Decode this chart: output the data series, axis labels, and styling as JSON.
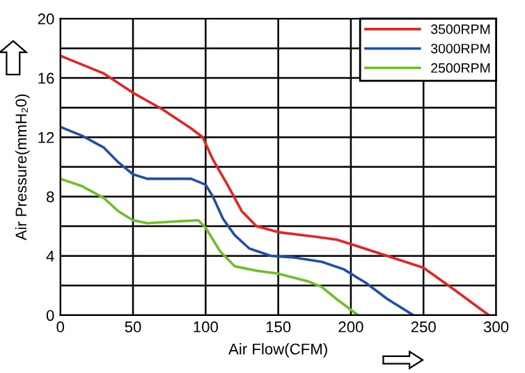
{
  "chart_data": {
    "type": "line",
    "xlabel": "Air Flow(CFM)",
    "ylabel": "Air Pressure(mmH₂0)",
    "xlim": [
      0,
      300
    ],
    "ylim": [
      0,
      20
    ],
    "xticks": [
      0,
      50,
      100,
      150,
      200,
      250,
      300
    ],
    "yticks": [
      0,
      {
        "value": 2,
        "label": null
      },
      4,
      {
        "value": 6,
        "label": null
      },
      8,
      {
        "value": 10,
        "label": null
      },
      12,
      {
        "value": 14,
        "label": null
      },
      16,
      {
        "value": 18,
        "label": null
      },
      20
    ],
    "grid": true,
    "legend": "top right",
    "marker": "none",
    "line_style": "solid",
    "series": [
      {
        "name": "3500RPM",
        "color": "#e8231f",
        "x": [
          0,
          30,
          50,
          70,
          90,
          98,
          105,
          115,
          125,
          135,
          150,
          175,
          190,
          200,
          225,
          250,
          270,
          295
        ],
        "values": [
          17.5,
          16.3,
          15,
          13.9,
          12.6,
          12,
          10.5,
          8.8,
          7,
          6,
          5.6,
          5.3,
          5.1,
          4.8,
          4,
          3.2,
          1.8,
          0
        ]
      },
      {
        "name": "3000RPM",
        "color": "#1f4fa8",
        "x": [
          0,
          15,
          30,
          40,
          50,
          60,
          75,
          90,
          100,
          105,
          112,
          120,
          130,
          145,
          160,
          180,
          195,
          210,
          225,
          243
        ],
        "values": [
          12.7,
          12.1,
          11.3,
          10.3,
          9.5,
          9.2,
          9.2,
          9.2,
          8.8,
          8,
          6.5,
          5.4,
          4.5,
          4,
          3.9,
          3.6,
          3.1,
          2.2,
          1.1,
          0
        ]
      },
      {
        "name": "2500RPM",
        "color": "#6cc024",
        "x": [
          0,
          15,
          30,
          40,
          50,
          60,
          75,
          95,
          100,
          110,
          120,
          135,
          150,
          170,
          180,
          190,
          205
        ],
        "values": [
          9.2,
          8.7,
          7.9,
          7,
          6.4,
          6.2,
          6.3,
          6.4,
          5.9,
          4.3,
          3.3,
          3,
          2.8,
          2.3,
          1.9,
          1.1,
          0
        ]
      }
    ]
  }
}
